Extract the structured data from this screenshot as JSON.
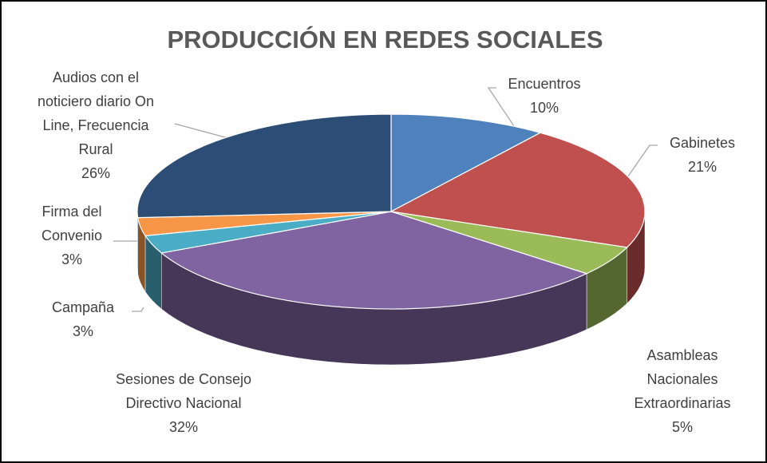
{
  "chart_data": {
    "type": "pie3d",
    "title": "PRODUCCIÓN EN REDES SOCIALES",
    "categories": [
      "Encuentros",
      "Gabinetes",
      "Asambleas Nacionales Extraordinarias",
      "Sesiones de Consejo Directivo Nacional",
      "Campaña",
      "Firma del Convenio",
      "Audios con el noticiero diario On Line, Frecuencia Rural"
    ],
    "values": [
      10,
      21,
      5,
      32,
      3,
      3,
      26
    ],
    "value_labels": [
      "10%",
      "21%",
      "5%",
      "32%",
      "3%",
      "3%",
      "26%"
    ],
    "colors": [
      "#4f81bd",
      "#c0504d",
      "#9bbb59",
      "#8064a2",
      "#4bacc6",
      "#f79646",
      "#2c4d75"
    ]
  }
}
